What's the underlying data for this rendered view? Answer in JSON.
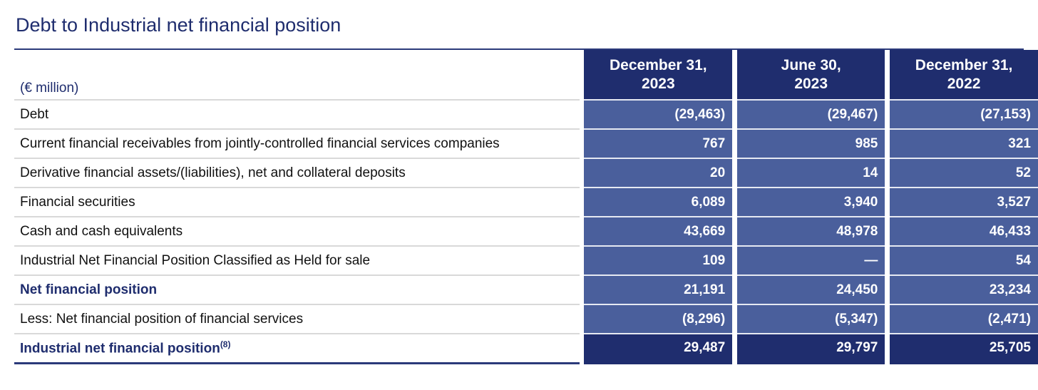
{
  "title": "Debt to Industrial net financial position",
  "unit_label": "(€ million)",
  "columns": [
    {
      "line1": "December 31,",
      "line2": "2023"
    },
    {
      "line1": "June 30,",
      "line2": "2023"
    },
    {
      "line1": "December 31,",
      "line2": "2022"
    }
  ],
  "rows": [
    {
      "label": "Debt",
      "values": [
        "(29,463)",
        "(29,467)",
        "(27,153)"
      ]
    },
    {
      "label": "Current financial receivables from jointly-controlled financial services companies",
      "values": [
        "767",
        "985",
        "321"
      ]
    },
    {
      "label": "Derivative financial assets/(liabilities), net and collateral deposits",
      "values": [
        "20",
        "14",
        "52"
      ]
    },
    {
      "label": "Financial securities",
      "values": [
        "6,089",
        "3,940",
        "3,527"
      ]
    },
    {
      "label": "Cash and cash equivalents",
      "values": [
        "43,669",
        "48,978",
        "46,433"
      ]
    },
    {
      "label": "Industrial Net Financial Position Classified as Held for sale",
      "values": [
        "109",
        "—",
        "54"
      ]
    },
    {
      "label": "Net financial position",
      "values": [
        "21,191",
        "24,450",
        "23,234"
      ]
    },
    {
      "label": "Less: Net financial position of financial services",
      "values": [
        "(8,296)",
        "(5,347)",
        "(2,471)"
      ]
    },
    {
      "label": "Industrial net financial position",
      "footnote": "(8)",
      "values": [
        "29,487",
        "29,797",
        "25,705"
      ]
    }
  ],
  "colors": {
    "header_bg": "#1f2d6e",
    "cell_bg": "#4a5f9c",
    "title_text": "#1f2d6e"
  }
}
